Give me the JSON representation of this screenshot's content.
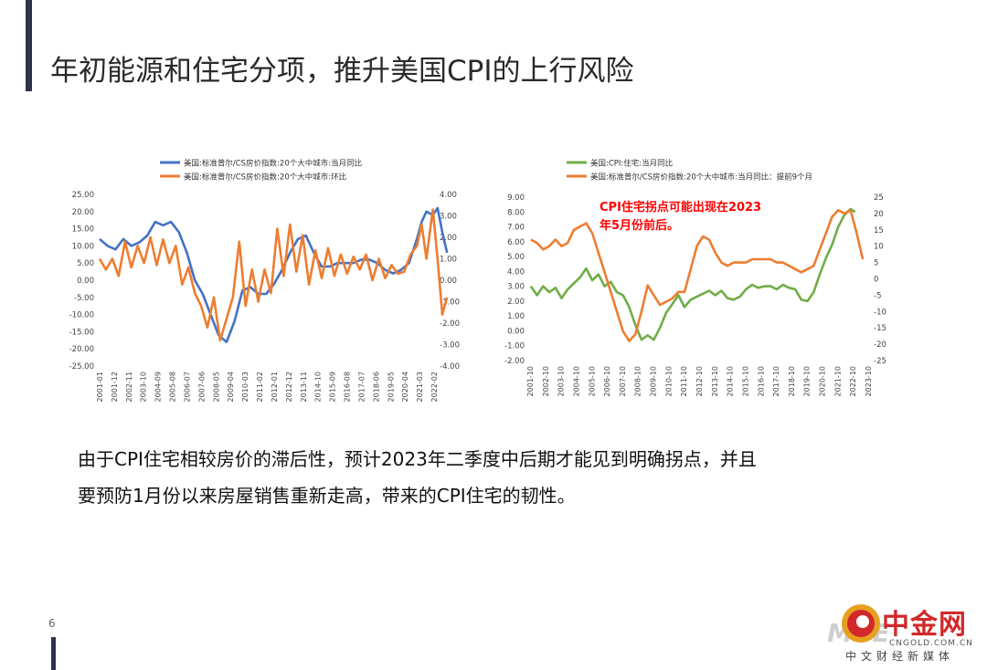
{
  "slide": {
    "title": "年初能源和住宅分项，推升美国CPI的上行风险",
    "body_line1": "由于CPI住宅相较房价的滞后性，预计2023年二季度中后期才能见到明确拐点，并且",
    "body_line2": "要预防1月份以来房屋销售重新走高，带来的CPI住宅的韧性。",
    "page_number": "6",
    "accent_color": "#2e3348"
  },
  "logo": {
    "watermark": "MVE",
    "main": "中金网",
    "url": "CNGOLD.COM.CN",
    "sub": "中文财经新媒体",
    "color": "#d2282b"
  },
  "chart_data": [
    {
      "type": "line",
      "legend": [
        "美国:标准普尔/CS房价指数:20个大中城市:当月同比",
        "美国:标准普尔/CS房价指数:20个大中城市:环比"
      ],
      "legend_placement": "top",
      "grid": false,
      "x_tick_labels": [
        "2001-01",
        "2001-12",
        "2002-11",
        "2003-10",
        "2004-09",
        "2005-08",
        "2006-07",
        "2007-06",
        "2008-05",
        "2009-04",
        "2010-03",
        "2011-02",
        "2012-01",
        "2012-12",
        "2013-11",
        "2014-10",
        "2015-09",
        "2016-08",
        "2017-07",
        "2018-06",
        "2019-05",
        "2020-04",
        "2021-03",
        "2022-02"
      ],
      "y_left": {
        "ticks": [
          "25.00",
          "20.00",
          "15.00",
          "10.00",
          "5.00",
          "0.00",
          "-5.00",
          "-10.00",
          "-15.00",
          "-20.00",
          "-25.00"
        ],
        "range": [
          -25,
          25
        ]
      },
      "y_right": {
        "ticks": [
          "4.00",
          "3.00",
          "2.00",
          "1.00",
          "0.00",
          "-1.00",
          "-2.00",
          "-3.00",
          "-4.00"
        ],
        "range": [
          -4,
          4
        ]
      },
      "series": [
        {
          "name": "美国:标准普尔/CS房价指数:20个大中城市:当月同比",
          "color": "#4472c4",
          "axis": "left",
          "x": [
            2001.0,
            2001.5,
            2002.0,
            2002.5,
            2003.0,
            2003.5,
            2004.0,
            2004.5,
            2005.0,
            2005.5,
            2006.0,
            2006.5,
            2007.0,
            2007.5,
            2008.0,
            2008.5,
            2009.0,
            2009.5,
            2010.0,
            2010.5,
            2011.0,
            2011.5,
            2012.0,
            2012.5,
            2013.0,
            2013.5,
            2014.0,
            2014.5,
            2015.0,
            2015.5,
            2016.0,
            2016.5,
            2017.0,
            2017.5,
            2018.0,
            2018.5,
            2019.0,
            2019.5,
            2020.0,
            2020.5,
            2021.0,
            2021.3,
            2021.6,
            2022.0,
            2022.3,
            2022.6,
            2022.9
          ],
          "values": [
            12,
            10,
            9,
            12,
            10,
            11,
            13,
            17,
            16,
            17,
            14,
            8,
            0,
            -4,
            -10,
            -16,
            -18,
            -12,
            -3,
            -2,
            -4,
            -4,
            -1,
            3,
            8,
            12,
            13,
            8,
            4,
            4,
            5,
            5,
            5,
            6,
            6,
            5,
            3,
            2,
            3,
            5,
            12,
            17,
            20,
            19,
            21,
            14,
            8
          ]
        },
        {
          "name": "美国:标准普尔/CS房价指数:20个大中城市:环比",
          "color": "#ed7d31",
          "axis": "right",
          "x": [
            2001.0,
            2001.4,
            2001.8,
            2002.2,
            2002.6,
            2003.0,
            2003.4,
            2003.8,
            2004.2,
            2004.6,
            2005.0,
            2005.4,
            2005.8,
            2006.2,
            2006.6,
            2007.0,
            2007.4,
            2007.8,
            2008.2,
            2008.6,
            2009.0,
            2009.4,
            2009.8,
            2010.2,
            2010.6,
            2011.0,
            2011.4,
            2011.8,
            2012.2,
            2012.6,
            2013.0,
            2013.4,
            2013.8,
            2014.2,
            2014.6,
            2015.0,
            2015.4,
            2015.8,
            2016.2,
            2016.6,
            2017.0,
            2017.4,
            2017.8,
            2018.2,
            2018.6,
            2019.0,
            2019.4,
            2019.8,
            2020.2,
            2020.6,
            2021.0,
            2021.3,
            2021.6,
            2022.0,
            2022.3,
            2022.6,
            2022.9
          ],
          "values": [
            1.0,
            0.5,
            1.0,
            0.2,
            1.8,
            0.6,
            1.6,
            0.8,
            2.0,
            0.7,
            1.9,
            0.8,
            1.6,
            -0.2,
            0.6,
            -0.6,
            -1.2,
            -2.2,
            -0.8,
            -2.8,
            -1.8,
            -0.8,
            1.8,
            -1.2,
            0.5,
            -1.0,
            0.5,
            -0.6,
            2.4,
            0.2,
            2.6,
            0.4,
            2.1,
            -0.2,
            1.4,
            0.1,
            1.5,
            0.2,
            1.2,
            0.3,
            1.1,
            0.5,
            1.2,
            0.0,
            1.0,
            0.1,
            0.7,
            0.3,
            0.4,
            1.2,
            1.6,
            2.6,
            1.0,
            3.3,
            1.0,
            -1.6,
            -0.8
          ]
        }
      ]
    },
    {
      "type": "line",
      "legend": [
        "美国:CPI:住宅:当月同比",
        "美国:标准普尔/CS房价指数:20个大中城市:当月同比：提前9个月"
      ],
      "legend_placement": "top",
      "grid": false,
      "annotation": "CPI住宅拐点可能出现在2023年5月份前后。",
      "annotation_color": "#ff0000",
      "x_tick_labels": [
        "2001-10",
        "2002-10",
        "2003-10",
        "2004-10",
        "2005-10",
        "2006-10",
        "2007-10",
        "2008-10",
        "2009-10",
        "2010-10",
        "2011-10",
        "2012-10",
        "2013-10",
        "2014-10",
        "2015-10",
        "2016-10",
        "2017-10",
        "2018-10",
        "2019-10",
        "2020-10",
        "2021-10",
        "2022-10",
        "2023-10"
      ],
      "y_left": {
        "ticks": [
          "9.00",
          "8.00",
          "7.00",
          "6.00",
          "5.00",
          "4.00",
          "3.00",
          "2.00",
          "1.00",
          "0.00",
          "-1.00",
          "-2.00"
        ],
        "range": [
          -2,
          9
        ]
      },
      "y_right": {
        "ticks": [
          "25",
          "20",
          "15",
          "10",
          "5",
          "0",
          "-5",
          "-10",
          "-15",
          "-20",
          "-25"
        ],
        "range": [
          -25,
          25
        ]
      },
      "series": [
        {
          "name": "美国:CPI:住宅:当月同比",
          "color": "#70ad47",
          "axis": "left",
          "x": [
            2001.8,
            2002.2,
            2002.6,
            2003.0,
            2003.4,
            2003.8,
            2004.2,
            2004.6,
            2005.0,
            2005.4,
            2005.8,
            2006.2,
            2006.6,
            2007.0,
            2007.4,
            2007.8,
            2008.2,
            2008.6,
            2009.0,
            2009.4,
            2009.8,
            2010.2,
            2010.6,
            2011.0,
            2011.4,
            2011.8,
            2012.2,
            2012.6,
            2013.0,
            2013.4,
            2013.8,
            2014.2,
            2014.6,
            2015.0,
            2015.4,
            2015.8,
            2016.2,
            2016.6,
            2017.0,
            2017.4,
            2017.8,
            2018.2,
            2018.6,
            2019.0,
            2019.4,
            2019.8,
            2020.2,
            2020.6,
            2021.0,
            2021.4,
            2021.8,
            2022.2,
            2022.6,
            2022.9
          ],
          "values": [
            3.0,
            2.4,
            3.0,
            2.6,
            2.9,
            2.2,
            2.8,
            3.2,
            3.6,
            4.2,
            3.4,
            3.8,
            3.0,
            3.3,
            2.6,
            2.4,
            1.6,
            0.4,
            -0.6,
            -0.3,
            -0.6,
            0.2,
            1.2,
            1.8,
            2.4,
            1.6,
            2.1,
            2.3,
            2.5,
            2.7,
            2.4,
            2.7,
            2.2,
            2.1,
            2.3,
            2.8,
            3.1,
            2.9,
            3.0,
            3.0,
            2.8,
            3.1,
            2.9,
            2.8,
            2.1,
            2.0,
            2.6,
            3.8,
            4.9,
            5.8,
            7.0,
            7.8,
            8.2,
            8.0
          ]
        },
        {
          "name": "美国:标准普尔/CS房价指数:20个大中城市:当月同比：提前9个月",
          "color": "#ed7d31",
          "axis": "right",
          "x": [
            2001.8,
            2002.2,
            2002.6,
            2003.0,
            2003.4,
            2003.8,
            2004.2,
            2004.6,
            2005.0,
            2005.4,
            2005.8,
            2006.2,
            2006.6,
            2007.0,
            2007.4,
            2007.8,
            2008.2,
            2008.6,
            2009.0,
            2009.4,
            2009.8,
            2010.2,
            2010.6,
            2011.0,
            2011.4,
            2011.8,
            2012.2,
            2012.6,
            2013.0,
            2013.4,
            2013.8,
            2014.2,
            2014.6,
            2015.0,
            2015.4,
            2015.8,
            2016.2,
            2016.6,
            2017.0,
            2017.4,
            2017.8,
            2018.2,
            2018.6,
            2019.0,
            2019.4,
            2019.8,
            2020.2,
            2020.6,
            2021.0,
            2021.4,
            2021.8,
            2022.2,
            2022.6,
            2023.0,
            2023.4
          ],
          "values": [
            12,
            11,
            9,
            10,
            12,
            10,
            11,
            15,
            16,
            17,
            14,
            8,
            2,
            -4,
            -10,
            -16,
            -19,
            -17,
            -10,
            -2,
            -5,
            -8,
            -7,
            -6,
            -4,
            -4,
            3,
            10,
            13,
            12,
            8,
            5,
            4,
            5,
            5,
            5,
            6,
            6,
            6,
            6,
            5,
            5,
            4,
            3,
            2,
            3,
            4,
            9,
            14,
            19,
            21,
            20,
            21,
            14,
            6
          ]
        }
      ]
    }
  ]
}
